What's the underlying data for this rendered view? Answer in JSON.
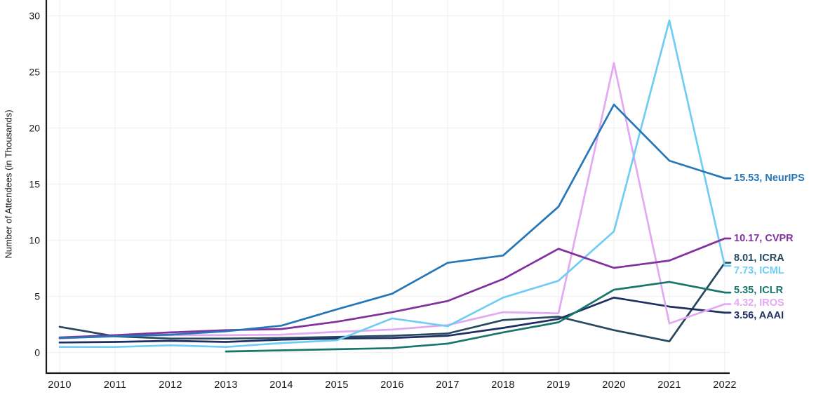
{
  "chart_data": {
    "type": "line",
    "title": "",
    "xlabel": "",
    "ylabel": "Number of Attendees (in Thousands)",
    "x": [
      2010,
      2011,
      2012,
      2013,
      2014,
      2015,
      2016,
      2017,
      2018,
      2019,
      2020,
      2021,
      2022
    ],
    "yticks": [
      0,
      5,
      10,
      15,
      20,
      25,
      30
    ],
    "ylim": [
      0,
      31
    ],
    "grid": true,
    "legend_position": "right-end-labels",
    "series": [
      {
        "name": "ICRA",
        "color": "#27485e",
        "end_label": "8.01, ICRA",
        "values": [
          2.3,
          1.45,
          1.25,
          1.25,
          1.3,
          1.4,
          1.5,
          1.7,
          2.9,
          3.2,
          2.0,
          1.0,
          8.01
        ]
      },
      {
        "name": "AAAI",
        "color": "#1e2f63",
        "end_label": "3.56, AAAI",
        "values": [
          0.9,
          0.95,
          1.05,
          0.95,
          1.15,
          1.25,
          1.3,
          1.5,
          2.2,
          3.0,
          4.9,
          4.1,
          3.56
        ]
      },
      {
        "name": "IROS",
        "color": "#e2a9f2",
        "end_label": "4.32, IROS",
        "values": [
          1.25,
          1.5,
          1.55,
          1.55,
          1.6,
          1.85,
          2.05,
          2.45,
          3.6,
          3.5,
          25.8,
          2.6,
          4.32
        ]
      },
      {
        "name": "ICML",
        "color": "#6fcdf4",
        "end_label": "7.73, ICML",
        "values": [
          0.5,
          0.5,
          0.65,
          0.5,
          0.85,
          1.1,
          3.05,
          2.35,
          4.9,
          6.4,
          10.8,
          29.6,
          7.73
        ]
      },
      {
        "name": "ICLR",
        "color": "#17756b",
        "end_label": "5.35, ICLR",
        "values": [
          null,
          null,
          null,
          0.1,
          0.2,
          0.3,
          0.4,
          0.8,
          1.8,
          2.7,
          5.6,
          6.3,
          5.35
        ]
      },
      {
        "name": "CVPR",
        "color": "#82309e",
        "end_label": "10.17, CVPR",
        "values": [
          1.35,
          1.55,
          1.8,
          2.0,
          2.1,
          2.75,
          3.6,
          4.6,
          6.55,
          9.25,
          7.55,
          8.2,
          10.17
        ]
      },
      {
        "name": "NeurIPS",
        "color": "#2577b8",
        "end_label": "15.53, NeurIPS",
        "values": [
          1.3,
          1.45,
          1.6,
          1.9,
          2.4,
          3.85,
          5.25,
          8.0,
          8.65,
          13.0,
          22.1,
          17.1,
          15.53
        ]
      }
    ]
  },
  "colors": {
    "background": "#ffffff",
    "axis": "#1a1a1a",
    "grid": "#f1f1f3",
    "tick_text": "#1a1a1a"
  }
}
